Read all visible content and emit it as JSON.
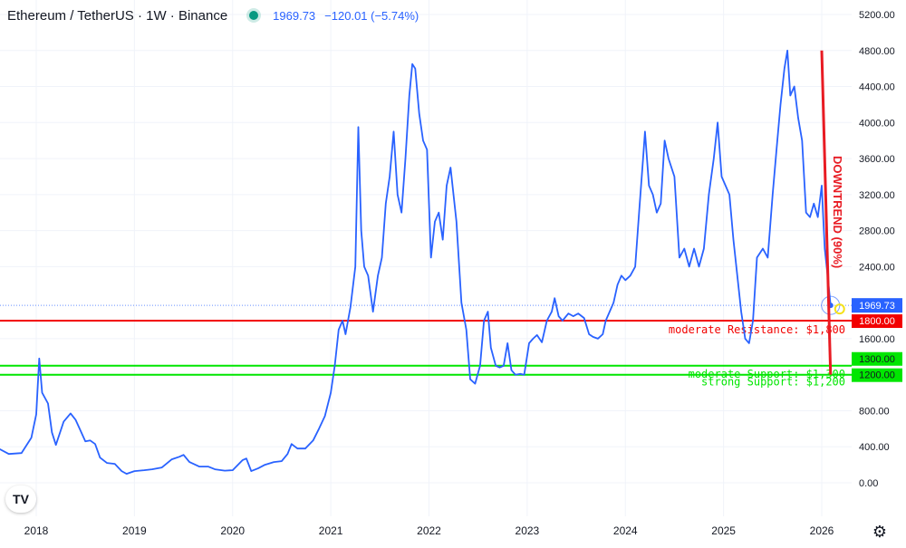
{
  "header": {
    "symbol": "Ethereum / TetherUS · 1W · Binance",
    "price": "1969.73",
    "change": "−120.01 (−5.74%)"
  },
  "colors": {
    "price_line": "#2962ff",
    "resistance": "#f20000",
    "support": "#00e600",
    "trend": "#e81b23",
    "marker": "#f5e11b"
  },
  "chart_data": {
    "type": "line",
    "title": "",
    "xlabel": "",
    "ylabel": "",
    "ylim": [
      -200,
      5300
    ],
    "xlim": [
      2017.6,
      2026.45
    ],
    "grid": true,
    "y_ticks": [
      "5200.00",
      "4800.00",
      "4400.00",
      "4000.00",
      "3600.00",
      "3200.00",
      "2800.00",
      "2400.00",
      "1600.00",
      "800.00",
      "400.00",
      "0.00"
    ],
    "x_ticks": [
      "2018",
      "2019",
      "2020",
      "2021",
      "2022",
      "2023",
      "2024",
      "2025",
      "2026"
    ],
    "series": [
      {
        "values": [
          [
            2017.6,
            390
          ],
          [
            2017.72,
            320
          ],
          [
            2017.85,
            330
          ],
          [
            2017.95,
            500
          ],
          [
            2018.0,
            760
          ],
          [
            2018.03,
            1380
          ],
          [
            2018.06,
            1000
          ],
          [
            2018.12,
            880
          ],
          [
            2018.16,
            560
          ],
          [
            2018.2,
            420
          ],
          [
            2018.28,
            680
          ],
          [
            2018.35,
            770
          ],
          [
            2018.4,
            700
          ],
          [
            2018.45,
            580
          ],
          [
            2018.5,
            460
          ],
          [
            2018.55,
            470
          ],
          [
            2018.6,
            430
          ],
          [
            2018.65,
            280
          ],
          [
            2018.72,
            220
          ],
          [
            2018.8,
            210
          ],
          [
            2018.87,
            130
          ],
          [
            2018.92,
            100
          ],
          [
            2019.0,
            130
          ],
          [
            2019.1,
            140
          ],
          [
            2019.18,
            150
          ],
          [
            2019.28,
            170
          ],
          [
            2019.38,
            260
          ],
          [
            2019.46,
            290
          ],
          [
            2019.5,
            310
          ],
          [
            2019.56,
            230
          ],
          [
            2019.66,
            180
          ],
          [
            2019.75,
            180
          ],
          [
            2019.82,
            150
          ],
          [
            2019.92,
            135
          ],
          [
            2020.0,
            140
          ],
          [
            2020.1,
            250
          ],
          [
            2020.14,
            270
          ],
          [
            2020.19,
            130
          ],
          [
            2020.26,
            160
          ],
          [
            2020.33,
            200
          ],
          [
            2020.42,
            230
          ],
          [
            2020.5,
            240
          ],
          [
            2020.56,
            320
          ],
          [
            2020.6,
            430
          ],
          [
            2020.66,
            380
          ],
          [
            2020.74,
            380
          ],
          [
            2020.82,
            470
          ],
          [
            2020.88,
            600
          ],
          [
            2020.94,
            740
          ],
          [
            2021.0,
            1000
          ],
          [
            2021.04,
            1300
          ],
          [
            2021.08,
            1700
          ],
          [
            2021.12,
            1800
          ],
          [
            2021.15,
            1650
          ],
          [
            2021.2,
            1950
          ],
          [
            2021.25,
            2400
          ],
          [
            2021.28,
            3950
          ],
          [
            2021.31,
            2800
          ],
          [
            2021.34,
            2400
          ],
          [
            2021.38,
            2300
          ],
          [
            2021.43,
            1900
          ],
          [
            2021.48,
            2300
          ],
          [
            2021.52,
            2500
          ],
          [
            2021.56,
            3100
          ],
          [
            2021.6,
            3400
          ],
          [
            2021.64,
            3900
          ],
          [
            2021.68,
            3200
          ],
          [
            2021.72,
            3000
          ],
          [
            2021.76,
            3600
          ],
          [
            2021.8,
            4300
          ],
          [
            2021.83,
            4650
          ],
          [
            2021.86,
            4600
          ],
          [
            2021.9,
            4100
          ],
          [
            2021.94,
            3800
          ],
          [
            2021.98,
            3700
          ],
          [
            2022.02,
            2500
          ],
          [
            2022.06,
            2900
          ],
          [
            2022.1,
            3000
          ],
          [
            2022.14,
            2700
          ],
          [
            2022.18,
            3300
          ],
          [
            2022.22,
            3500
          ],
          [
            2022.28,
            2900
          ],
          [
            2022.33,
            2000
          ],
          [
            2022.38,
            1700
          ],
          [
            2022.42,
            1150
          ],
          [
            2022.47,
            1100
          ],
          [
            2022.52,
            1300
          ],
          [
            2022.56,
            1800
          ],
          [
            2022.6,
            1900
          ],
          [
            2022.63,
            1500
          ],
          [
            2022.68,
            1300
          ],
          [
            2022.72,
            1280
          ],
          [
            2022.76,
            1300
          ],
          [
            2022.8,
            1550
          ],
          [
            2022.84,
            1250
          ],
          [
            2022.88,
            1200
          ],
          [
            2022.93,
            1210
          ],
          [
            2022.97,
            1200
          ],
          [
            2023.02,
            1550
          ],
          [
            2023.06,
            1600
          ],
          [
            2023.1,
            1640
          ],
          [
            2023.15,
            1560
          ],
          [
            2023.2,
            1800
          ],
          [
            2023.25,
            1900
          ],
          [
            2023.28,
            2050
          ],
          [
            2023.32,
            1850
          ],
          [
            2023.36,
            1800
          ],
          [
            2023.42,
            1880
          ],
          [
            2023.47,
            1850
          ],
          [
            2023.52,
            1880
          ],
          [
            2023.58,
            1830
          ],
          [
            2023.63,
            1650
          ],
          [
            2023.67,
            1620
          ],
          [
            2023.72,
            1600
          ],
          [
            2023.77,
            1650
          ],
          [
            2023.8,
            1800
          ],
          [
            2023.84,
            1900
          ],
          [
            2023.88,
            2000
          ],
          [
            2023.92,
            2200
          ],
          [
            2023.96,
            2300
          ],
          [
            2024.0,
            2250
          ],
          [
            2024.05,
            2300
          ],
          [
            2024.1,
            2400
          ],
          [
            2024.14,
            3000
          ],
          [
            2024.18,
            3600
          ],
          [
            2024.2,
            3900
          ],
          [
            2024.24,
            3300
          ],
          [
            2024.28,
            3200
          ],
          [
            2024.32,
            3000
          ],
          [
            2024.36,
            3100
          ],
          [
            2024.4,
            3800
          ],
          [
            2024.44,
            3600
          ],
          [
            2024.5,
            3400
          ],
          [
            2024.55,
            2500
          ],
          [
            2024.6,
            2600
          ],
          [
            2024.65,
            2400
          ],
          [
            2024.7,
            2600
          ],
          [
            2024.75,
            2400
          ],
          [
            2024.8,
            2600
          ],
          [
            2024.85,
            3200
          ],
          [
            2024.9,
            3600
          ],
          [
            2024.94,
            4000
          ],
          [
            2024.98,
            3400
          ],
          [
            2025.02,
            3300
          ],
          [
            2025.06,
            3200
          ],
          [
            2025.1,
            2700
          ],
          [
            2025.14,
            2300
          ],
          [
            2025.18,
            1900
          ],
          [
            2025.22,
            1600
          ],
          [
            2025.26,
            1550
          ],
          [
            2025.3,
            1800
          ],
          [
            2025.34,
            2500
          ],
          [
            2025.4,
            2600
          ],
          [
            2025.45,
            2500
          ],
          [
            2025.5,
            3200
          ],
          [
            2025.54,
            3700
          ],
          [
            2025.58,
            4200
          ],
          [
            2025.62,
            4600
          ],
          [
            2025.65,
            4800
          ],
          [
            2025.68,
            4300
          ],
          [
            2025.72,
            4400
          ],
          [
            2025.76,
            4050
          ],
          [
            2025.8,
            3800
          ],
          [
            2025.84,
            3000
          ],
          [
            2025.88,
            2950
          ],
          [
            2025.92,
            3100
          ],
          [
            2025.96,
            2950
          ],
          [
            2026.0,
            3300
          ],
          [
            2026.03,
            2600
          ],
          [
            2026.06,
            2300
          ],
          [
            2026.09,
            1969.73
          ]
        ]
      }
    ],
    "levels": [
      {
        "label": "moderate Resistance: $1,800",
        "tag": "1800.00",
        "value": 1800
      },
      {
        "label": "moderate Support: $1,300",
        "tag": "1300.00",
        "value": 1300
      },
      {
        "label": "strong Support: $1,200",
        "tag": "1200.00",
        "value": 1200
      }
    ],
    "current_price_tag": "1969.73",
    "current_price": 1969.73,
    "trend_label": "DOWNTREND (90%)",
    "trend_line": {
      "start": [
        2026.0,
        4800
      ],
      "end": [
        2026.09,
        1200
      ]
    }
  },
  "logo": "TV",
  "settings_icon": "gear-icon"
}
